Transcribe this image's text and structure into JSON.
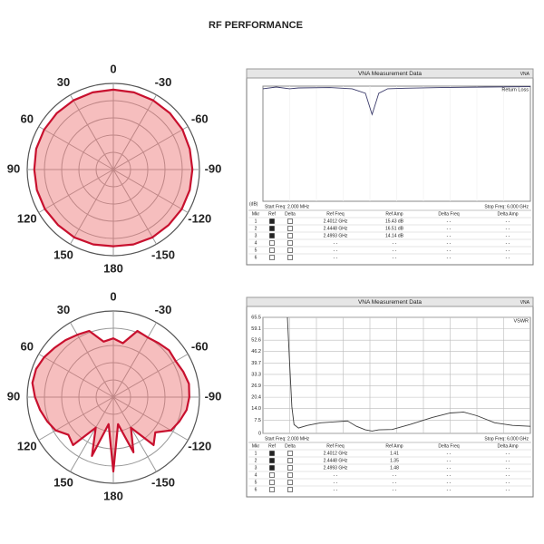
{
  "title": "RF PERFORMANCE",
  "chart_data": [
    {
      "type": "polar",
      "angle_ticks": [
        0,
        30,
        60,
        90,
        120,
        150,
        180,
        -150,
        -120,
        -90,
        -60,
        -30
      ],
      "rlim": [
        0,
        1.1
      ],
      "theta": [
        -180,
        -165,
        -150,
        -135,
        -120,
        -105,
        -90,
        -75,
        -60,
        -45,
        -30,
        -15,
        0,
        15,
        30,
        45,
        60,
        75,
        90,
        105,
        120,
        135,
        150,
        165
      ],
      "series": [
        {
          "color": "#c8102e",
          "values": [
            0.98,
            0.99,
            1.0,
            1.0,
            1.01,
            1.01,
            1.01,
            1.01,
            1.02,
            1.02,
            1.02,
            1.02,
            1.02,
            1.02,
            1.02,
            1.02,
            1.02,
            1.02,
            1.01,
            1.01,
            1.01,
            1.0,
            1.0,
            0.99
          ]
        }
      ]
    },
    {
      "type": "vna",
      "title": "VNA Measurement Data",
      "badge": "VNA",
      "trace_label": "Return Loss",
      "unit": "(dB)",
      "start": "Start Freq: 2.000 MHz",
      "stop": "Stop Freq: 6.000 GHz",
      "xlim": [
        0.002,
        6
      ],
      "ylim": [
        -65,
        0
      ],
      "grid": false,
      "x": [
        0.002,
        0.3,
        0.6,
        0.8,
        1.5,
        2.0,
        2.3,
        2.4,
        2.45,
        2.5,
        2.6,
        2.8,
        3.2,
        4.0,
        5.0,
        6.0
      ],
      "series": [
        {
          "color": "#3a3a6a",
          "values": [
            -1.5,
            -0.5,
            -1.5,
            -1,
            -0.8,
            -1.5,
            -4,
            -12,
            -16,
            -12,
            -4,
            -1.5,
            -1.2,
            -0.8,
            -0.5,
            -0.3
          ]
        }
      ],
      "table": {
        "columns": [
          "Mkr",
          "Ref",
          "Delta",
          "Ref Freq",
          "Ref Amp",
          "Delta Freq",
          "Delta Amp"
        ],
        "rows": [
          [
            "1",
            "2.4012 GHz",
            "15.43 dB",
            "- -",
            "- -"
          ],
          [
            "2",
            "2.4448 GHz",
            "16.51 dB",
            "- -",
            "- -"
          ],
          [
            "3",
            "2.4993 GHz",
            "14.14 dB",
            "- -",
            "- -"
          ],
          [
            "4",
            "- -",
            "- -",
            "- -",
            "- -"
          ],
          [
            "5",
            "- -",
            "- -",
            "- -",
            "- -"
          ],
          [
            "6",
            "- -",
            "- -",
            "- -",
            "- -"
          ]
        ]
      }
    },
    {
      "type": "polar",
      "angle_ticks": [
        0,
        30,
        60,
        90,
        120,
        150,
        180,
        -150,
        -120,
        -90,
        -60,
        -30
      ],
      "rlim": [
        0,
        1.1
      ],
      "theta": [
        -180,
        -170,
        -160,
        -150,
        -140,
        -130,
        -120,
        -110,
        -100,
        -90,
        -80,
        -70,
        -60,
        -50,
        -40,
        -30,
        -20,
        -10,
        0,
        10,
        20,
        30,
        40,
        50,
        60,
        70,
        80,
        90,
        100,
        110,
        120,
        130,
        140,
        150,
        160,
        170
      ],
      "series": [
        {
          "color": "#c8102e",
          "values": [
            0.95,
            0.35,
            0.75,
            0.45,
            0.8,
            0.7,
            0.85,
            0.9,
            0.95,
            0.97,
            0.98,
            0.95,
            0.92,
            0.93,
            0.9,
            0.88,
            0.9,
            0.7,
            0.75,
            0.72,
            0.9,
            0.92,
            0.95,
            0.98,
            1.02,
            1.05,
            1.05,
            1.0,
            0.95,
            0.9,
            0.85,
            0.75,
            0.8,
            0.45,
            0.8,
            0.35
          ]
        }
      ]
    },
    {
      "type": "vna",
      "title": "VNA Measurement Data",
      "badge": "VNA",
      "trace_label": "VSWR",
      "start": "Start Freq: 2.000 MHz",
      "stop": "Stop Freq: 6.000 GHz",
      "xlim": [
        0.002,
        6
      ],
      "ylim": [
        0,
        65.5
      ],
      "grid": true,
      "yticks": [
        65.5,
        59.1,
        52.6,
        46.2,
        39.7,
        33.3,
        26.9,
        20.4,
        {
          "value": 14,
          "label": "14.0"
        },
        7.5,
        0
      ],
      "x": [
        0.55,
        0.6,
        0.65,
        0.7,
        0.8,
        1.0,
        1.3,
        1.6,
        1.9,
        2.1,
        2.3,
        2.45,
        2.6,
        2.9,
        3.3,
        3.8,
        4.2,
        4.5,
        4.8,
        5.2,
        5.6,
        6.0
      ],
      "series": [
        {
          "color": "#3a3a3a",
          "values": [
            65.5,
            40,
            15,
            5,
            3,
            4.5,
            6,
            6.5,
            7,
            4,
            2,
            1.35,
            2,
            2.2,
            5,
            9,
            11.5,
            12,
            10,
            6,
            4.5,
            4
          ]
        }
      ],
      "table": {
        "columns": [
          "Mkr",
          "Ref",
          "Delta",
          "Ref Freq",
          "Ref Amp",
          "Delta Freq",
          "Delta Amp"
        ],
        "rows": [
          [
            "1",
            "2.4012 GHz",
            "1.41",
            "- -",
            "- -"
          ],
          [
            "2",
            "2.4448 GHz",
            "1.35",
            "- -",
            "- -"
          ],
          [
            "3",
            "2.4993 GHz",
            "1.48",
            "- -",
            "- -"
          ],
          [
            "4",
            "- -",
            "- -",
            "- -",
            "- -"
          ],
          [
            "5",
            "- -",
            "- -",
            "- -",
            "- -"
          ],
          [
            "6",
            "- -",
            "- -",
            "- -",
            "- -"
          ]
        ]
      }
    }
  ]
}
